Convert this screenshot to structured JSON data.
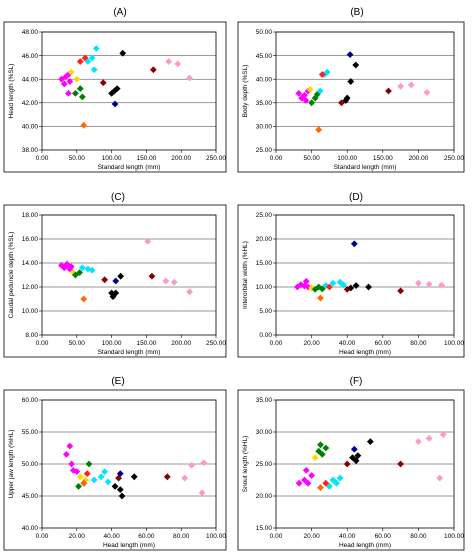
{
  "chart_data": [
    {
      "panel": "(A)",
      "type": "scatter",
      "xlabel": "Standard length (mm)",
      "ylabel": "Head length (%SL)",
      "xlim": [
        0,
        250
      ],
      "ylim": [
        38,
        48
      ],
      "xticks": [
        "0.00",
        "50.00",
        "100.00",
        "150.00",
        "200.00",
        "250.00"
      ],
      "yticks": [
        "38.00",
        "40.00",
        "42.00",
        "44.00",
        "46.00",
        "48.00"
      ],
      "grid": "horizontal",
      "points": [
        {
          "x": 28,
          "y": 44.0,
          "c": "#ff00ff"
        },
        {
          "x": 34,
          "y": 44.2,
          "c": "#ff00ff"
        },
        {
          "x": 38,
          "y": 44.4,
          "c": "#ff00ff"
        },
        {
          "x": 40,
          "y": 43.8,
          "c": "#ff00ff"
        },
        {
          "x": 32,
          "y": 43.6,
          "c": "#ff00ff"
        },
        {
          "x": 38,
          "y": 42.8,
          "c": "#ff00ff"
        },
        {
          "x": 42,
          "y": 44.6,
          "c": "#ffd700"
        },
        {
          "x": 50,
          "y": 44.0,
          "c": "#ffd700"
        },
        {
          "x": 55,
          "y": 45.5,
          "c": "#ff2020"
        },
        {
          "x": 62,
          "y": 45.8,
          "c": "#ff2020"
        },
        {
          "x": 48,
          "y": 42.8,
          "c": "#008000"
        },
        {
          "x": 55,
          "y": 43.2,
          "c": "#008000"
        },
        {
          "x": 58,
          "y": 42.5,
          "c": "#008000"
        },
        {
          "x": 60,
          "y": 40.1,
          "c": "#ff6a00"
        },
        {
          "x": 66,
          "y": 45.5,
          "c": "#00e5ff"
        },
        {
          "x": 72,
          "y": 45.8,
          "c": "#00e5ff"
        },
        {
          "x": 78,
          "y": 46.6,
          "c": "#00e5ff"
        },
        {
          "x": 75,
          "y": 44.8,
          "c": "#00e5ff"
        },
        {
          "x": 88,
          "y": 43.7,
          "c": "#8b0000"
        },
        {
          "x": 100,
          "y": 42.8,
          "c": "#000000"
        },
        {
          "x": 108,
          "y": 43.2,
          "c": "#000000"
        },
        {
          "x": 116,
          "y": 46.2,
          "c": "#000000"
        },
        {
          "x": 104,
          "y": 43.0,
          "c": "#000000"
        },
        {
          "x": 105,
          "y": 41.9,
          "c": "#00008b"
        },
        {
          "x": 160,
          "y": 44.8,
          "c": "#8b0000"
        },
        {
          "x": 182,
          "y": 45.5,
          "c": "#ff99cc"
        },
        {
          "x": 195,
          "y": 45.3,
          "c": "#ff99cc"
        },
        {
          "x": 212,
          "y": 44.1,
          "c": "#ff99cc"
        }
      ]
    },
    {
      "panel": "(B)",
      "type": "scatter",
      "xlabel": "Standard length (mm)",
      "ylabel": "Body depth (%SL)",
      "xlim": [
        0,
        250
      ],
      "ylim": [
        25,
        50
      ],
      "xticks": [
        "0.00",
        "50.00",
        "100.00",
        "150.00",
        "200.00",
        "250.00"
      ],
      "yticks": [
        "25.00",
        "30.00",
        "35.00",
        "40.00",
        "45.00",
        "50.00"
      ],
      "grid": "horizontal",
      "points": [
        {
          "x": 32,
          "y": 37.0,
          "c": "#ff00ff"
        },
        {
          "x": 36,
          "y": 36.0,
          "c": "#ff00ff"
        },
        {
          "x": 40,
          "y": 36.6,
          "c": "#ff00ff"
        },
        {
          "x": 42,
          "y": 35.5,
          "c": "#ff00ff"
        },
        {
          "x": 45,
          "y": 37.5,
          "c": "#ff00ff"
        },
        {
          "x": 48,
          "y": 37.8,
          "c": "#ffd700"
        },
        {
          "x": 50,
          "y": 35.0,
          "c": "#008000"
        },
        {
          "x": 55,
          "y": 36.0,
          "c": "#008000"
        },
        {
          "x": 58,
          "y": 36.8,
          "c": "#008000"
        },
        {
          "x": 60,
          "y": 29.3,
          "c": "#ff6a00"
        },
        {
          "x": 62,
          "y": 37.5,
          "c": "#00e5ff"
        },
        {
          "x": 68,
          "y": 41.0,
          "c": "#00e5ff"
        },
        {
          "x": 72,
          "y": 41.5,
          "c": "#00e5ff"
        },
        {
          "x": 65,
          "y": 41.0,
          "c": "#ff2020"
        },
        {
          "x": 92,
          "y": 35.0,
          "c": "#8b0000"
        },
        {
          "x": 100,
          "y": 36.0,
          "c": "#000000"
        },
        {
          "x": 105,
          "y": 39.5,
          "c": "#000000"
        },
        {
          "x": 112,
          "y": 43.0,
          "c": "#000000"
        },
        {
          "x": 98,
          "y": 35.5,
          "c": "#000000"
        },
        {
          "x": 104,
          "y": 45.2,
          "c": "#00008b"
        },
        {
          "x": 158,
          "y": 37.5,
          "c": "#8b0000"
        },
        {
          "x": 175,
          "y": 38.5,
          "c": "#ff99cc"
        },
        {
          "x": 190,
          "y": 38.8,
          "c": "#ff99cc"
        },
        {
          "x": 212,
          "y": 37.2,
          "c": "#ff99cc"
        }
      ]
    },
    {
      "panel": "(C)",
      "type": "scatter",
      "xlabel": "Standard length (mm)",
      "ylabel": "Caudal peduncle depth (%SL)",
      "xlim": [
        0,
        250
      ],
      "ylim": [
        8,
        18
      ],
      "xticks": [
        "0.00",
        "50.00",
        "100.00",
        "150.00",
        "200.00",
        "250.00"
      ],
      "yticks": [
        "8.00",
        "10.00",
        "12.00",
        "14.00",
        "16.00",
        "18.00"
      ],
      "grid": "horizontal",
      "points": [
        {
          "x": 28,
          "y": 13.8,
          "c": "#ff00ff"
        },
        {
          "x": 32,
          "y": 13.6,
          "c": "#ff00ff"
        },
        {
          "x": 36,
          "y": 13.9,
          "c": "#ff00ff"
        },
        {
          "x": 40,
          "y": 13.5,
          "c": "#ff00ff"
        },
        {
          "x": 42,
          "y": 13.7,
          "c": "#ff00ff"
        },
        {
          "x": 45,
          "y": 13.2,
          "c": "#ffd700"
        },
        {
          "x": 48,
          "y": 13.0,
          "c": "#008000"
        },
        {
          "x": 54,
          "y": 13.2,
          "c": "#008000"
        },
        {
          "x": 58,
          "y": 13.6,
          "c": "#00e5ff"
        },
        {
          "x": 66,
          "y": 13.5,
          "c": "#00e5ff"
        },
        {
          "x": 72,
          "y": 13.4,
          "c": "#00e5ff"
        },
        {
          "x": 60,
          "y": 11.0,
          "c": "#ff6a00"
        },
        {
          "x": 90,
          "y": 12.6,
          "c": "#8b0000"
        },
        {
          "x": 102,
          "y": 11.2,
          "c": "#000000"
        },
        {
          "x": 106,
          "y": 11.5,
          "c": "#000000"
        },
        {
          "x": 113,
          "y": 12.9,
          "c": "#000000"
        },
        {
          "x": 100,
          "y": 11.5,
          "c": "#000000"
        },
        {
          "x": 106,
          "y": 12.5,
          "c": "#00008b"
        },
        {
          "x": 152,
          "y": 15.8,
          "c": "#ff99cc"
        },
        {
          "x": 158,
          "y": 12.9,
          "c": "#8b0000"
        },
        {
          "x": 178,
          "y": 12.5,
          "c": "#ff99cc"
        },
        {
          "x": 190,
          "y": 12.4,
          "c": "#ff99cc"
        },
        {
          "x": 212,
          "y": 11.6,
          "c": "#ff99cc"
        }
      ]
    },
    {
      "panel": "(D)",
      "type": "scatter",
      "xlabel": "Head length (mm)",
      "ylabel": "Interorbital width (%HL)",
      "xlim": [
        0,
        100
      ],
      "ylim": [
        0,
        25
      ],
      "xticks": [
        "0.00",
        "20.00",
        "40.00",
        "60.00",
        "80.00",
        "100.00"
      ],
      "yticks": [
        "0.00",
        "5.00",
        "10.00",
        "15.00",
        "20.00",
        "25.00"
      ],
      "grid": "horizontal",
      "points": [
        {
          "x": 12,
          "y": 10.0,
          "c": "#ff00ff"
        },
        {
          "x": 14,
          "y": 10.5,
          "c": "#ff00ff"
        },
        {
          "x": 16,
          "y": 10.2,
          "c": "#ff00ff"
        },
        {
          "x": 17,
          "y": 11.2,
          "c": "#ff00ff"
        },
        {
          "x": 18,
          "y": 10.0,
          "c": "#ff00ff"
        },
        {
          "x": 20,
          "y": 9.8,
          "c": "#ffd700"
        },
        {
          "x": 22,
          "y": 9.5,
          "c": "#008000"
        },
        {
          "x": 24,
          "y": 10.0,
          "c": "#008000"
        },
        {
          "x": 26,
          "y": 9.6,
          "c": "#008000"
        },
        {
          "x": 25,
          "y": 7.7,
          "c": "#ff6a00"
        },
        {
          "x": 28,
          "y": 10.3,
          "c": "#00e5ff"
        },
        {
          "x": 32,
          "y": 10.8,
          "c": "#00e5ff"
        },
        {
          "x": 36,
          "y": 11.0,
          "c": "#00e5ff"
        },
        {
          "x": 38,
          "y": 10.4,
          "c": "#00e5ff"
        },
        {
          "x": 30,
          "y": 10.0,
          "c": "#ff2020"
        },
        {
          "x": 40,
          "y": 9.5,
          "c": "#8b0000"
        },
        {
          "x": 42,
          "y": 9.8,
          "c": "#000000"
        },
        {
          "x": 45,
          "y": 10.3,
          "c": "#000000"
        },
        {
          "x": 52,
          "y": 10.0,
          "c": "#000000"
        },
        {
          "x": 44,
          "y": 19.0,
          "c": "#00008b"
        },
        {
          "x": 70,
          "y": 9.2,
          "c": "#8b0000"
        },
        {
          "x": 80,
          "y": 10.8,
          "c": "#ff99cc"
        },
        {
          "x": 86,
          "y": 10.6,
          "c": "#ff99cc"
        },
        {
          "x": 93,
          "y": 10.4,
          "c": "#ff99cc"
        }
      ]
    },
    {
      "panel": "(E)",
      "type": "scatter",
      "xlabel": "Head length (mm)",
      "ylabel": "Upper jaw length (%HL)",
      "xlim": [
        0,
        100
      ],
      "ylim": [
        40,
        60
      ],
      "xticks": [
        "0.00",
        "20.00",
        "40.00",
        "60.00",
        "80.00",
        "100.00"
      ],
      "yticks": [
        "40.00",
        "45.00",
        "50.00",
        "55.00",
        "60.00"
      ],
      "grid": "horizontal",
      "points": [
        {
          "x": 14,
          "y": 51.5,
          "c": "#ff00ff"
        },
        {
          "x": 16,
          "y": 52.8,
          "c": "#ff00ff"
        },
        {
          "x": 17,
          "y": 50.0,
          "c": "#ff00ff"
        },
        {
          "x": 18,
          "y": 49.0,
          "c": "#ff00ff"
        },
        {
          "x": 20,
          "y": 48.8,
          "c": "#ff00ff"
        },
        {
          "x": 22,
          "y": 48.0,
          "c": "#ffd700"
        },
        {
          "x": 25,
          "y": 47.5,
          "c": "#ffd700"
        },
        {
          "x": 21,
          "y": 46.5,
          "c": "#008000"
        },
        {
          "x": 24,
          "y": 47.0,
          "c": "#008000"
        },
        {
          "x": 27,
          "y": 50.0,
          "c": "#008000"
        },
        {
          "x": 26,
          "y": 48.5,
          "c": "#ff2020"
        },
        {
          "x": 24,
          "y": 47.0,
          "c": "#ff6a00"
        },
        {
          "x": 30,
          "y": 47.5,
          "c": "#00e5ff"
        },
        {
          "x": 34,
          "y": 48.0,
          "c": "#00e5ff"
        },
        {
          "x": 36,
          "y": 48.8,
          "c": "#00e5ff"
        },
        {
          "x": 38,
          "y": 47.2,
          "c": "#00e5ff"
        },
        {
          "x": 44,
          "y": 47.8,
          "c": "#8b0000"
        },
        {
          "x": 42,
          "y": 46.5,
          "c": "#000000"
        },
        {
          "x": 45,
          "y": 46.0,
          "c": "#000000"
        },
        {
          "x": 46,
          "y": 45.0,
          "c": "#000000"
        },
        {
          "x": 53,
          "y": 48.0,
          "c": "#000000"
        },
        {
          "x": 45,
          "y": 48.5,
          "c": "#00008b"
        },
        {
          "x": 72,
          "y": 48.0,
          "c": "#8b0000"
        },
        {
          "x": 82,
          "y": 47.8,
          "c": "#ff99cc"
        },
        {
          "x": 86,
          "y": 49.8,
          "c": "#ff99cc"
        },
        {
          "x": 93,
          "y": 50.2,
          "c": "#ff99cc"
        },
        {
          "x": 92,
          "y": 45.5,
          "c": "#ff99cc"
        }
      ]
    },
    {
      "panel": "(F)",
      "type": "scatter",
      "xlabel": "Head length (mm)",
      "ylabel": "Snout length (%HL)",
      "xlim": [
        0,
        100
      ],
      "ylim": [
        15,
        35
      ],
      "xticks": [
        "0.00",
        "20.00",
        "40.00",
        "60.00",
        "80.00",
        "100.00"
      ],
      "yticks": [
        "15.00",
        "20.00",
        "25.00",
        "30.00",
        "35.00"
      ],
      "grid": "horizontal",
      "points": [
        {
          "x": 13,
          "y": 22.0,
          "c": "#ff00ff"
        },
        {
          "x": 16,
          "y": 22.5,
          "c": "#ff00ff"
        },
        {
          "x": 17,
          "y": 24.0,
          "c": "#ff00ff"
        },
        {
          "x": 18,
          "y": 22.0,
          "c": "#ff00ff"
        },
        {
          "x": 20,
          "y": 23.2,
          "c": "#ff00ff"
        },
        {
          "x": 22,
          "y": 26.0,
          "c": "#ffd700"
        },
        {
          "x": 24,
          "y": 27.0,
          "c": "#008000"
        },
        {
          "x": 25,
          "y": 28.0,
          "c": "#008000"
        },
        {
          "x": 26,
          "y": 26.5,
          "c": "#008000"
        },
        {
          "x": 28,
          "y": 27.5,
          "c": "#008000"
        },
        {
          "x": 25,
          "y": 21.3,
          "c": "#ff6a00"
        },
        {
          "x": 30,
          "y": 21.5,
          "c": "#00e5ff"
        },
        {
          "x": 32,
          "y": 22.5,
          "c": "#00e5ff"
        },
        {
          "x": 34,
          "y": 22.0,
          "c": "#00e5ff"
        },
        {
          "x": 36,
          "y": 22.8,
          "c": "#00e5ff"
        },
        {
          "x": 28,
          "y": 22.0,
          "c": "#ff2020"
        },
        {
          "x": 40,
          "y": 25.0,
          "c": "#8b0000"
        },
        {
          "x": 43,
          "y": 26.0,
          "c": "#000000"
        },
        {
          "x": 45,
          "y": 25.5,
          "c": "#000000"
        },
        {
          "x": 46,
          "y": 26.3,
          "c": "#000000"
        },
        {
          "x": 53,
          "y": 28.5,
          "c": "#000000"
        },
        {
          "x": 44,
          "y": 27.3,
          "c": "#00008b"
        },
        {
          "x": 70,
          "y": 25.0,
          "c": "#8b0000"
        },
        {
          "x": 80,
          "y": 28.5,
          "c": "#ff99cc"
        },
        {
          "x": 86,
          "y": 29.0,
          "c": "#ff99cc"
        },
        {
          "x": 94,
          "y": 29.6,
          "c": "#ff99cc"
        },
        {
          "x": 92,
          "y": 22.8,
          "c": "#ff99cc"
        }
      ]
    }
  ]
}
